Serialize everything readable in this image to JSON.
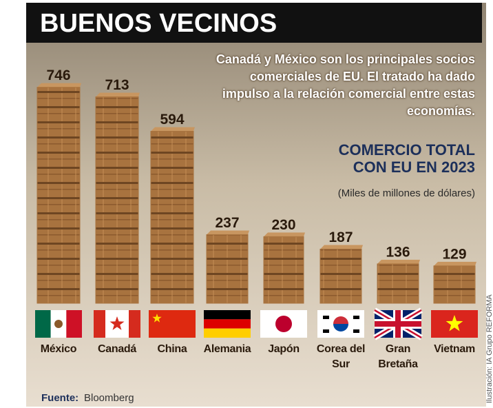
{
  "chart_data": {
    "type": "bar",
    "title": "BUENOS VECINOS",
    "subtitle": "Canadá y México son los principales socios comerciales de EU. El tratado ha dado impulso a la relación comercial entre estas economías.",
    "chart_title": "COMERCIO TOTAL CON EU EN 2023",
    "unit_note": "(Miles de millones de dólares)",
    "categories": [
      "México",
      "Canadá",
      "China",
      "Alemania",
      "Japón",
      "Corea del Sur",
      "Gran Bretaña",
      "Vietnam"
    ],
    "values": [
      746,
      713,
      594,
      237,
      230,
      187,
      136,
      129
    ],
    "color": "#a8733f"
  },
  "source": {
    "label": "Fuente:",
    "name": "Bloomberg"
  },
  "credit": "Ilustración: IA Grupo REFORMA"
}
